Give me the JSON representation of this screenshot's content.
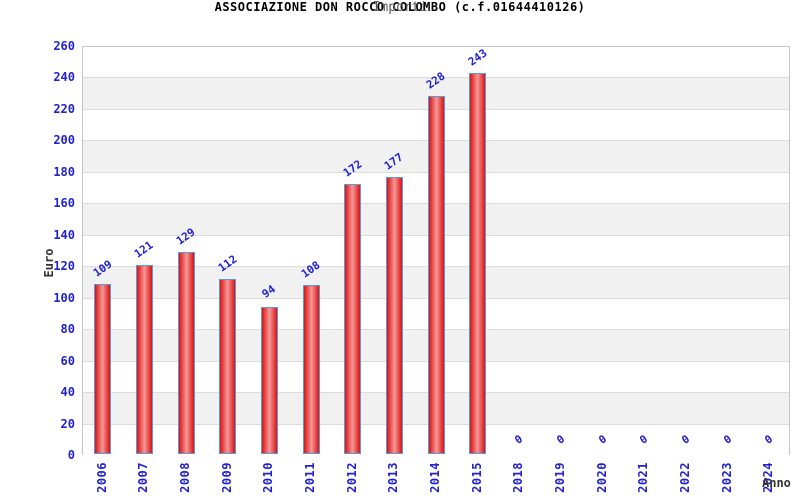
{
  "chart_data": {
    "type": "bar",
    "title": "ASSOCIAZIONE DON ROCCO COLOMBO (c.f.01644410126)",
    "subtitle": "Importi",
    "xlabel": "Anno",
    "ylabel": "Euro",
    "categories": [
      "2006",
      "2007",
      "2008",
      "2009",
      "2010",
      "2011",
      "2012",
      "2013",
      "2014",
      "2015",
      "2018",
      "2019",
      "2020",
      "2021",
      "2022",
      "2023",
      "2024"
    ],
    "values": [
      109,
      121,
      129,
      112,
      94,
      108,
      172,
      177,
      228,
      243,
      0,
      0,
      0,
      0,
      0,
      0,
      0
    ],
    "ylim": [
      0,
      260
    ],
    "ytick_step": 20,
    "grid": true,
    "legend_position": "none",
    "colors": {
      "axis_text": "#2222cc",
      "value_label": "#2222cc",
      "bar_edge": "#d41616",
      "bar_center": "#f29898",
      "bar_border": "#5b9bd5",
      "band": "#f1f1f1",
      "gridline": "#dcdcdc",
      "plot_border": "#c6c6c6",
      "title": "#000000",
      "subtitle": "#5a5a5a",
      "axis_title": "#333333"
    }
  }
}
